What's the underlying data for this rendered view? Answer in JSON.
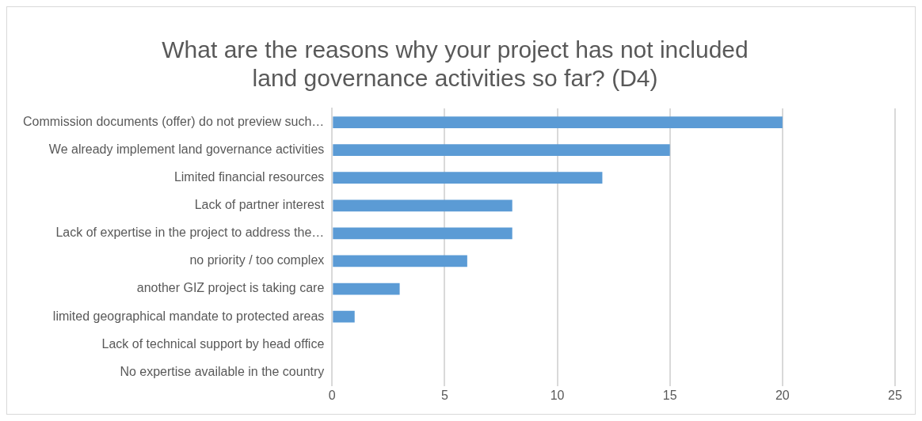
{
  "chart_data": {
    "type": "bar",
    "orientation": "horizontal",
    "title": [
      "What are the reasons why your project has not included",
      "land governance activities so far? (D4)"
    ],
    "categories": [
      "Commission documents (offer) do not preview such…",
      "We already implement land governance activities",
      "Limited financial resources",
      "Lack of partner interest",
      "Lack of expertise in the project to address the…",
      "no priority / too complex",
      "another GIZ project is taking care",
      "limited geographical mandate to protected areas",
      "Lack of technical support by head office",
      "No expertise available in the country"
    ],
    "values": [
      20,
      15,
      12,
      8,
      8,
      6,
      3,
      1,
      0,
      0
    ],
    "color": "#5b9bd5",
    "xlim": [
      0,
      25
    ],
    "xticks": [
      0,
      5,
      10,
      15,
      20,
      25
    ],
    "grid": "x",
    "legend": false
  }
}
